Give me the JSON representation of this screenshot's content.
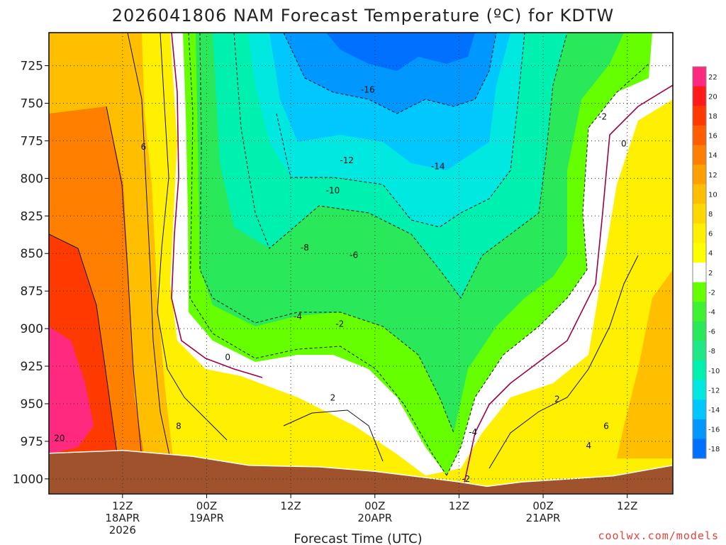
{
  "chart_data": {
    "type": "contour",
    "title": "2026041806 NAM Forecast Temperature (ºC) for KDTW",
    "xlabel": "Forecast Time (UTC)",
    "ylabel": "",
    "credit": "coolwx.com/models",
    "ylim": [
      1010,
      703
    ],
    "y_ticks": [
      725,
      750,
      775,
      800,
      825,
      850,
      875,
      900,
      925,
      950,
      975,
      1000
    ],
    "x_range_hours": [
      -4.5,
      84.5
    ],
    "x_ticks": [
      {
        "hour": 6,
        "lines": [
          "12Z",
          "18APR",
          "2026"
        ]
      },
      {
        "hour": 18,
        "lines": [
          "00Z",
          "19APR"
        ]
      },
      {
        "hour": 30,
        "lines": [
          "12Z"
        ]
      },
      {
        "hour": 42,
        "lines": [
          "00Z",
          "20APR"
        ]
      },
      {
        "hour": 54,
        "lines": [
          "12Z"
        ]
      },
      {
        "hour": 66,
        "lines": [
          "00Z",
          "21APR"
        ]
      },
      {
        "hour": 78,
        "lines": [
          "12Z"
        ]
      }
    ],
    "surface_pressure": [
      {
        "hour": -4.5,
        "p": 983
      },
      {
        "hour": 6,
        "p": 981
      },
      {
        "hour": 16,
        "p": 985
      },
      {
        "hour": 24,
        "p": 991
      },
      {
        "hour": 34,
        "p": 992
      },
      {
        "hour": 42,
        "p": 995
      },
      {
        "hour": 49,
        "p": 999
      },
      {
        "hour": 54,
        "p": 1002
      },
      {
        "hour": 58,
        "p": 1005
      },
      {
        "hour": 63,
        "p": 1002
      },
      {
        "hour": 70,
        "p": 1000
      },
      {
        "hour": 76,
        "p": 998
      },
      {
        "hour": 84.5,
        "p": 991
      }
    ],
    "colorbar": {
      "levels": [
        22,
        20,
        18,
        16,
        14,
        12,
        10,
        8,
        6,
        4,
        2,
        -2,
        -4,
        -6,
        -8,
        -10,
        -12,
        -14,
        -16,
        -18
      ],
      "colors": [
        "#ff2a7f",
        "#ff1a1a",
        "#ff3a00",
        "#ff5e00",
        "#ff8000",
        "#ffa000",
        "#ffbf00",
        "#ffd800",
        "#ffef00",
        "#ffff00",
        "#ffffff",
        "#66ff00",
        "#3ef232",
        "#29e85a",
        "#1ee887",
        "#00f0b0",
        "#00e8e0",
        "#00c8ff",
        "#0098ff",
        "#0070ff"
      ]
    },
    "contour_labels": [
      {
        "text": "-16",
        "hour": 41,
        "p": 741
      },
      {
        "text": "-14",
        "hour": 51,
        "p": 792
      },
      {
        "text": "-12",
        "hour": 38,
        "p": 788
      },
      {
        "text": "-10",
        "hour": 36,
        "p": 808
      },
      {
        "text": "-8",
        "hour": 32,
        "p": 846
      },
      {
        "text": "-6",
        "hour": 39,
        "p": 851
      },
      {
        "text": "-4",
        "hour": 31,
        "p": 892
      },
      {
        "text": "-2",
        "hour": 37,
        "p": 897
      },
      {
        "text": "0",
        "hour": 21,
        "p": 919
      },
      {
        "text": "2",
        "hour": 36,
        "p": 946
      },
      {
        "text": "2",
        "hour": 68,
        "p": 947
      },
      {
        "text": "-4",
        "hour": 56,
        "p": 969
      },
      {
        "text": "-2",
        "hour": 55,
        "p": 1000
      },
      {
        "text": "6",
        "hour": 9,
        "p": 779
      },
      {
        "text": "8",
        "hour": 14,
        "p": 965
      },
      {
        "text": "20",
        "hour": -3,
        "p": 973
      },
      {
        "text": "6",
        "hour": 75,
        "p": 965
      },
      {
        "text": "4",
        "hour": 72.5,
        "p": 978
      },
      {
        "text": "-2",
        "hour": 74.5,
        "p": 759
      },
      {
        "text": "0",
        "hour": 77.5,
        "p": 777
      }
    ]
  }
}
